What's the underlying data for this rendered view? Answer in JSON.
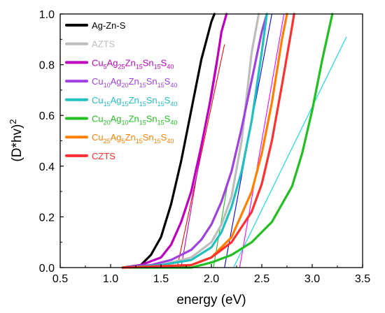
{
  "chart_data": {
    "type": "line",
    "title": "",
    "xlabel": "energy (eV)",
    "ylabel": "(D*hv)",
    "ylabel_sup": "2",
    "xlim": [
      0.5,
      3.5
    ],
    "ylim": [
      0.0,
      1.0
    ],
    "xticks": [
      "0.5",
      "1.0",
      "1.5",
      "2.0",
      "2.5",
      "3.0",
      "3.5"
    ],
    "yticks": [
      "0.0",
      "0.2",
      "0.4",
      "0.6",
      "0.8",
      "1.0"
    ],
    "grid": false,
    "legend_position": "top-left",
    "series": [
      {
        "name": "Ag-Zn-S",
        "color": "#000000",
        "label": [
          [
            "Ag-Zn-S",
            "n"
          ]
        ],
        "x": [
          1.12,
          1.3,
          1.4,
          1.5,
          1.6,
          1.7,
          1.8,
          1.9,
          2.0,
          2.03
        ],
        "y": [
          0.0,
          0.01,
          0.05,
          0.12,
          0.25,
          0.42,
          0.62,
          0.82,
          0.97,
          1.0
        ]
      },
      {
        "name": "AZTS",
        "color": "#bdbdbd",
        "label": [
          [
            "AZTS",
            "n"
          ]
        ],
        "x": [
          1.12,
          1.5,
          1.8,
          2.0,
          2.1,
          2.2,
          2.3,
          2.4,
          2.47
        ],
        "y": [
          0.0,
          0.01,
          0.04,
          0.1,
          0.17,
          0.28,
          0.5,
          0.85,
          1.0
        ]
      },
      {
        "name": "Cu5Ag25Zn15Sn15S40",
        "color": "#c000c0",
        "label": [
          [
            "Cu",
            "n"
          ],
          [
            "5",
            "s"
          ],
          [
            "Ag",
            "n"
          ],
          [
            "25",
            "s"
          ],
          [
            "Zn",
            "n"
          ],
          [
            "15",
            "s"
          ],
          [
            "Sn",
            "n"
          ],
          [
            "15",
            "s"
          ],
          [
            "S",
            "n"
          ],
          [
            "40",
            "s"
          ]
        ],
        "x": [
          1.12,
          1.3,
          1.5,
          1.6,
          1.7,
          1.8,
          1.9,
          2.0,
          2.05,
          2.1,
          2.15
        ],
        "y": [
          0.0,
          0.01,
          0.04,
          0.09,
          0.18,
          0.3,
          0.48,
          0.68,
          0.8,
          0.93,
          1.0
        ]
      },
      {
        "name": "Cu10Ag20Zn15Sn15S40",
        "color": "#a040e0",
        "label": [
          [
            "Cu",
            "n"
          ],
          [
            "10",
            "s"
          ],
          [
            "Ag",
            "n"
          ],
          [
            "20",
            "s"
          ],
          [
            "Zn",
            "n"
          ],
          [
            "15",
            "s"
          ],
          [
            "Sn",
            "n"
          ],
          [
            "15",
            "s"
          ],
          [
            "S",
            "n"
          ],
          [
            "40",
            "s"
          ]
        ],
        "x": [
          1.12,
          1.4,
          1.6,
          1.8,
          1.9,
          2.0,
          2.1,
          2.2,
          2.3,
          2.4,
          2.5,
          2.55
        ],
        "y": [
          0.0,
          0.01,
          0.03,
          0.07,
          0.11,
          0.17,
          0.26,
          0.38,
          0.55,
          0.74,
          0.93,
          1.0
        ]
      },
      {
        "name": "Cu15Ag15Zn15Sn15S40",
        "color": "#20c0c0",
        "label": [
          [
            "Cu",
            "n"
          ],
          [
            "15",
            "s"
          ],
          [
            "Ag",
            "n"
          ],
          [
            "15",
            "s"
          ],
          [
            "Zn",
            "n"
          ],
          [
            "15",
            "s"
          ],
          [
            "Sn",
            "n"
          ],
          [
            "15",
            "s"
          ],
          [
            "S",
            "n"
          ],
          [
            "40",
            "s"
          ]
        ],
        "x": [
          1.12,
          1.5,
          1.8,
          2.0,
          2.1,
          2.2,
          2.3,
          2.4,
          2.5,
          2.55
        ],
        "y": [
          0.0,
          0.01,
          0.03,
          0.08,
          0.14,
          0.24,
          0.38,
          0.58,
          0.85,
          1.0
        ]
      },
      {
        "name": "Cu20Ag10Zn15Sn15S40",
        "color": "#20c020",
        "label": [
          [
            "Cu",
            "n"
          ],
          [
            "20",
            "s"
          ],
          [
            "Ag",
            "n"
          ],
          [
            "10",
            "s"
          ],
          [
            "Zn",
            "n"
          ],
          [
            "15",
            "s"
          ],
          [
            "Sn",
            "n"
          ],
          [
            "15",
            "s"
          ],
          [
            "S",
            "n"
          ],
          [
            "40",
            "s"
          ]
        ],
        "x": [
          1.12,
          1.8,
          2.0,
          2.2,
          2.4,
          2.6,
          2.8,
          2.9,
          3.0,
          3.1,
          3.2
        ],
        "y": [
          0.0,
          0.0,
          0.02,
          0.05,
          0.1,
          0.18,
          0.32,
          0.45,
          0.62,
          0.82,
          1.0
        ]
      },
      {
        "name": "Cu25Ag5Zn15Sn15S40",
        "color": "#ff8000",
        "label": [
          [
            "Cu",
            "n"
          ],
          [
            "25",
            "s"
          ],
          [
            "Ag",
            "n"
          ],
          [
            "5",
            "s"
          ],
          [
            "Zn",
            "n"
          ],
          [
            "15",
            "s"
          ],
          [
            "Sn",
            "n"
          ],
          [
            "15",
            "s"
          ],
          [
            "S",
            "n"
          ],
          [
            "40",
            "s"
          ]
        ],
        "x": [
          1.12,
          1.8,
          2.0,
          2.2,
          2.4,
          2.5,
          2.6,
          2.7,
          2.75
        ],
        "y": [
          0.0,
          0.01,
          0.04,
          0.12,
          0.3,
          0.45,
          0.65,
          0.9,
          1.0
        ]
      },
      {
        "name": "CZTS",
        "color": "#ff3030",
        "label": [
          [
            "CZTS",
            "n"
          ]
        ],
        "x": [
          1.12,
          1.8,
          2.0,
          2.2,
          2.4,
          2.5,
          2.6,
          2.7,
          2.8,
          2.82
        ],
        "y": [
          0.0,
          0.01,
          0.04,
          0.1,
          0.22,
          0.33,
          0.5,
          0.72,
          0.95,
          1.0
        ]
      }
    ],
    "fit_lines": [
      {
        "color": "#ff0000",
        "x": [
          1.66,
          2.13
        ],
        "y": [
          0.0,
          0.88
        ]
      },
      {
        "color": "#c000c0",
        "x": [
          1.7,
          2.05
        ],
        "y": [
          0.0,
          0.82
        ]
      },
      {
        "color": "#20c020",
        "x": [
          2.02,
          2.17
        ],
        "y": [
          0.0,
          0.35
        ]
      },
      {
        "color": "#0000ff",
        "x": [
          2.13,
          2.6
        ],
        "y": [
          0.0,
          1.0
        ]
      },
      {
        "color": "#ff00ff",
        "x": [
          2.28,
          2.72
        ],
        "y": [
          0.0,
          1.0
        ]
      },
      {
        "color": "#00e0e0",
        "x": [
          2.22,
          3.34
        ],
        "y": [
          0.0,
          0.91
        ]
      }
    ]
  }
}
